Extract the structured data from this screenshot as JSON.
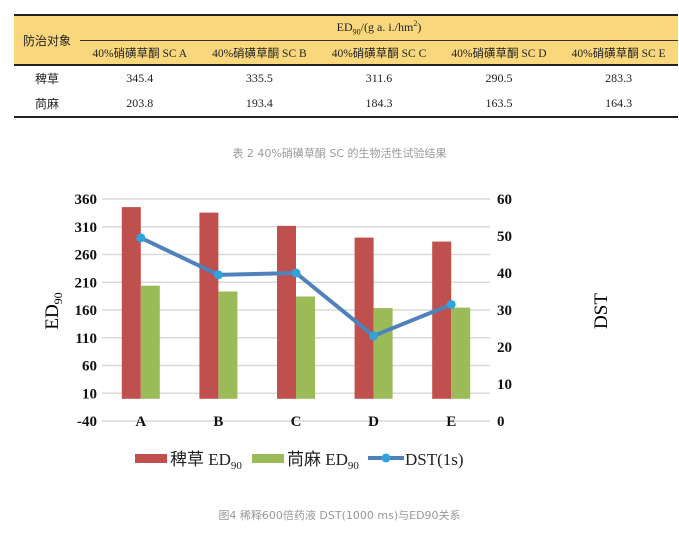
{
  "table": {
    "row_header": "防治对象",
    "group_header": "ED90/(g a. i./hm2)",
    "group_header_main": "ED",
    "group_header_sub": "90",
    "group_header_unit": "/(g a. i./hm",
    "group_header_sup": "2",
    "group_header_close": ")",
    "columns": [
      "40%硝磺草酮 SC A",
      "40%硝磺草酮 SC B",
      "40%硝磺草酮 SC C",
      "40%硝磺草酮 SC D",
      "40%硝磺草酮 SC E"
    ],
    "rows": [
      {
        "name": "稗草",
        "values": [
          "345.4",
          "335.5",
          "311.6",
          "290.5",
          "283.3"
        ]
      },
      {
        "name": "苘麻",
        "values": [
          "203.8",
          "193.4",
          "184.3",
          "163.5",
          "164.3"
        ]
      }
    ],
    "caption": "表 2  40%硝磺草酮 SC 的生物活性试验结果"
  },
  "chart_data": {
    "type": "bar",
    "categories": [
      "A",
      "B",
      "C",
      "D",
      "E"
    ],
    "series": [
      {
        "name": "稗草 ED90",
        "axis": "left",
        "type": "bar",
        "color": "#c0504d",
        "values": [
          345.4,
          335.5,
          311.6,
          290.5,
          283.3
        ]
      },
      {
        "name": "苘麻 ED90",
        "axis": "left",
        "type": "bar",
        "color": "#9bbb59",
        "values": [
          203.8,
          193.4,
          184.3,
          163.5,
          164.3
        ]
      },
      {
        "name": "DST(1s)",
        "axis": "right",
        "type": "line",
        "color": "#4f81bd",
        "marker_color": "#2ea3dc",
        "values": [
          49.5,
          39.5,
          40,
          23,
          31.5
        ]
      }
    ],
    "ylabel": "ED90",
    "ylabel_main": "ED",
    "ylabel_sub": "90",
    "y2label": "DST",
    "ylim": [
      -40,
      360
    ],
    "yticks": [
      360,
      310,
      260,
      210,
      160,
      110,
      60,
      10,
      -40
    ],
    "y2lim": [
      0,
      60
    ],
    "y2ticks": [
      60,
      50,
      40,
      30,
      20,
      10,
      0
    ],
    "legend_labels": [
      {
        "main": "稗草 ED",
        "sub": "90"
      },
      {
        "main": "苘麻 ED",
        "sub": "90"
      },
      {
        "main": "DST(1s)",
        "sub": ""
      }
    ],
    "grid": true,
    "legend": "bottom",
    "caption": "图4  稀释600倍药液 DST(1000 ms)与ED90关系"
  }
}
